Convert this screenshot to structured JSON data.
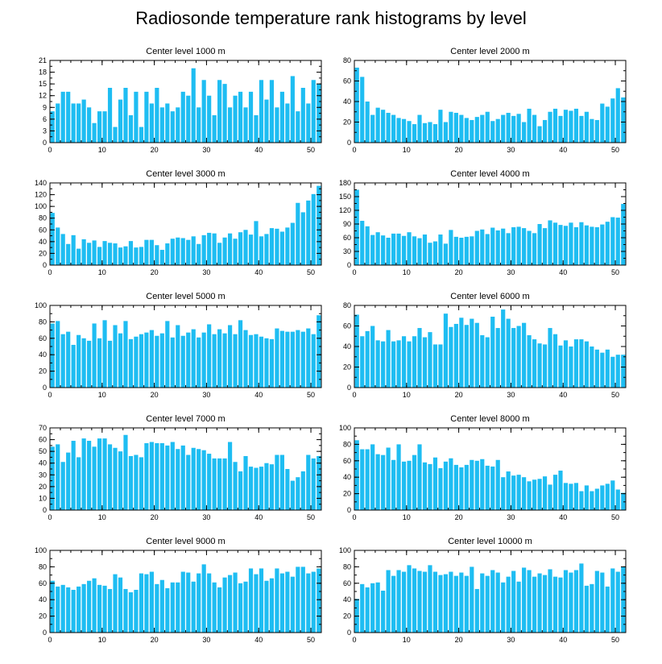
{
  "title": "Radiosonde temperature rank histograms by level",
  "colors": {
    "bar": "#1ebdf2",
    "axis": "#000000"
  },
  "chart_data": [
    {
      "type": "bar",
      "title": "Center level 1000 m",
      "x": [
        0,
        1,
        2,
        3,
        4,
        5,
        6,
        7,
        8,
        9,
        10,
        11,
        12,
        13,
        14,
        15,
        16,
        17,
        18,
        19,
        20,
        21,
        22,
        23,
        24,
        25,
        26,
        27,
        28,
        29,
        30,
        31,
        32,
        33,
        34,
        35,
        36,
        37,
        38,
        39,
        40,
        41,
        42,
        43,
        44,
        45,
        46,
        47,
        48,
        49,
        50,
        51
      ],
      "values": [
        8,
        10,
        13,
        13,
        10,
        10,
        11,
        9,
        5,
        8,
        8,
        14,
        4,
        11,
        14,
        7,
        13,
        4,
        13,
        10,
        14,
        9,
        10,
        8,
        9,
        13,
        12,
        19,
        9,
        16,
        12,
        7,
        16,
        15,
        9,
        12,
        13,
        9,
        13,
        7,
        16,
        11,
        16,
        9,
        13,
        10,
        17,
        8,
        14,
        10,
        16,
        15
      ],
      "xlim": [
        0,
        52
      ],
      "ylim": [
        0,
        21
      ],
      "xticks": [
        0,
        10,
        20,
        30,
        40,
        50
      ],
      "yticks": [
        0,
        3,
        6,
        9,
        12,
        15,
        18,
        21
      ]
    },
    {
      "type": "bar",
      "title": "Center level 2000 m",
      "x": [
        0,
        1,
        2,
        3,
        4,
        5,
        6,
        7,
        8,
        9,
        10,
        11,
        12,
        13,
        14,
        15,
        16,
        17,
        18,
        19,
        20,
        21,
        22,
        23,
        24,
        25,
        26,
        27,
        28,
        29,
        30,
        31,
        32,
        33,
        34,
        35,
        36,
        37,
        38,
        39,
        40,
        41,
        42,
        43,
        44,
        45,
        46,
        47,
        48,
        49,
        50,
        51
      ],
      "values": [
        73,
        64,
        40,
        27,
        34,
        32,
        29,
        27,
        24,
        23,
        21,
        18,
        27,
        19,
        20,
        18,
        32,
        20,
        30,
        29,
        27,
        24,
        22,
        25,
        27,
        30,
        21,
        23,
        27,
        29,
        26,
        28,
        20,
        33,
        27,
        16,
        22,
        30,
        33,
        26,
        32,
        31,
        33,
        26,
        30,
        23,
        22,
        38,
        35,
        43,
        53,
        44
      ],
      "xlim": [
        0,
        52
      ],
      "ylim": [
        0,
        80
      ],
      "xticks": [
        0,
        10,
        20,
        30,
        40,
        50
      ],
      "yticks": [
        0,
        20,
        40,
        60,
        80
      ]
    },
    {
      "type": "bar",
      "title": "Center level 3000 m",
      "x": [
        0,
        1,
        2,
        3,
        4,
        5,
        6,
        7,
        8,
        9,
        10,
        11,
        12,
        13,
        14,
        15,
        16,
        17,
        18,
        19,
        20,
        21,
        22,
        23,
        24,
        25,
        26,
        27,
        28,
        29,
        30,
        31,
        32,
        33,
        34,
        35,
        36,
        37,
        38,
        39,
        40,
        41,
        42,
        43,
        44,
        45,
        46,
        47,
        48,
        49,
        50,
        51
      ],
      "values": [
        89,
        64,
        53,
        36,
        51,
        28,
        44,
        38,
        42,
        31,
        41,
        38,
        37,
        30,
        32,
        41,
        30,
        31,
        43,
        43,
        34,
        26,
        37,
        45,
        47,
        46,
        43,
        49,
        36,
        51,
        55,
        54,
        38,
        47,
        54,
        45,
        56,
        60,
        52,
        75,
        49,
        53,
        63,
        62,
        57,
        64,
        72,
        106,
        90,
        110,
        121,
        135
      ],
      "xlim": [
        0,
        52
      ],
      "ylim": [
        0,
        140
      ],
      "xticks": [
        0,
        10,
        20,
        30,
        40,
        50
      ],
      "yticks": [
        0,
        20,
        40,
        60,
        80,
        100,
        120,
        140
      ]
    },
    {
      "type": "bar",
      "title": "Center level 4000 m",
      "x": [
        0,
        1,
        2,
        3,
        4,
        5,
        6,
        7,
        8,
        9,
        10,
        11,
        12,
        13,
        14,
        15,
        16,
        17,
        18,
        19,
        20,
        21,
        22,
        23,
        24,
        25,
        26,
        27,
        28,
        29,
        30,
        31,
        32,
        33,
        34,
        35,
        36,
        37,
        38,
        39,
        40,
        41,
        42,
        43,
        44,
        45,
        46,
        47,
        48,
        49,
        50,
        51
      ],
      "values": [
        165,
        97,
        85,
        66,
        72,
        65,
        60,
        69,
        69,
        64,
        72,
        63,
        59,
        67,
        49,
        52,
        67,
        47,
        77,
        62,
        60,
        62,
        63,
        75,
        78,
        68,
        82,
        76,
        80,
        70,
        83,
        84,
        81,
        75,
        70,
        90,
        81,
        98,
        93,
        88,
        86,
        93,
        83,
        94,
        87,
        84,
        83,
        89,
        95,
        105,
        104,
        134
      ],
      "xlim": [
        0,
        52
      ],
      "ylim": [
        0,
        180
      ],
      "xticks": [
        0,
        10,
        20,
        30,
        40,
        50
      ],
      "yticks": [
        0,
        30,
        60,
        90,
        120,
        150,
        180
      ]
    },
    {
      "type": "bar",
      "title": "Center level 5000 m",
      "x": [
        0,
        1,
        2,
        3,
        4,
        5,
        6,
        7,
        8,
        9,
        10,
        11,
        12,
        13,
        14,
        15,
        16,
        17,
        18,
        19,
        20,
        21,
        22,
        23,
        24,
        25,
        26,
        27,
        28,
        29,
        30,
        31,
        32,
        33,
        34,
        35,
        36,
        37,
        38,
        39,
        40,
        41,
        42,
        43,
        44,
        45,
        46,
        47,
        48,
        49,
        50,
        51
      ],
      "values": [
        78,
        81,
        65,
        68,
        52,
        64,
        60,
        57,
        78,
        60,
        82,
        57,
        76,
        66,
        81,
        59,
        62,
        65,
        67,
        70,
        63,
        66,
        81,
        61,
        76,
        63,
        67,
        71,
        61,
        67,
        77,
        65,
        71,
        66,
        76,
        65,
        82,
        70,
        64,
        65,
        62,
        60,
        59,
        72,
        69,
        68,
        68,
        70,
        68,
        72,
        65,
        88
      ],
      "xlim": [
        0,
        52
      ],
      "ylim": [
        0,
        100
      ],
      "xticks": [
        0,
        10,
        20,
        30,
        40,
        50
      ],
      "yticks": [
        0,
        20,
        40,
        60,
        80,
        100
      ]
    },
    {
      "type": "bar",
      "title": "Center level 6000 m",
      "x": [
        0,
        1,
        2,
        3,
        4,
        5,
        6,
        7,
        8,
        9,
        10,
        11,
        12,
        13,
        14,
        15,
        16,
        17,
        18,
        19,
        20,
        21,
        22,
        23,
        24,
        25,
        26,
        27,
        28,
        29,
        30,
        31,
        32,
        33,
        34,
        35,
        36,
        37,
        38,
        39,
        40,
        41,
        42,
        43,
        44,
        45,
        46,
        47,
        48,
        49,
        50,
        51
      ],
      "values": [
        71,
        50,
        55,
        60,
        46,
        45,
        56,
        45,
        46,
        50,
        45,
        50,
        58,
        49,
        54,
        42,
        42,
        72,
        59,
        62,
        68,
        61,
        67,
        63,
        51,
        49,
        69,
        58,
        76,
        67,
        58,
        60,
        63,
        51,
        47,
        43,
        42,
        58,
        52,
        41,
        46,
        40,
        47,
        47,
        45,
        40,
        37,
        34,
        37,
        30,
        32,
        32
      ],
      "xlim": [
        0,
        52
      ],
      "ylim": [
        0,
        80
      ],
      "xticks": [
        0,
        10,
        20,
        30,
        40,
        50
      ],
      "yticks": [
        0,
        20,
        40,
        60,
        80
      ]
    },
    {
      "type": "bar",
      "title": "Center level 7000 m",
      "x": [
        0,
        1,
        2,
        3,
        4,
        5,
        6,
        7,
        8,
        9,
        10,
        11,
        12,
        13,
        14,
        15,
        16,
        17,
        18,
        19,
        20,
        21,
        22,
        23,
        24,
        25,
        26,
        27,
        28,
        29,
        30,
        31,
        32,
        33,
        34,
        35,
        36,
        37,
        38,
        39,
        40,
        41,
        42,
        43,
        44,
        45,
        46,
        47,
        48,
        49,
        50,
        51
      ],
      "values": [
        54,
        56,
        41,
        49,
        59,
        45,
        61,
        59,
        54,
        61,
        61,
        56,
        53,
        50,
        64,
        46,
        47,
        45,
        57,
        58,
        57,
        57,
        55,
        58,
        52,
        55,
        47,
        53,
        52,
        51,
        48,
        44,
        44,
        44,
        58,
        41,
        33,
        46,
        37,
        36,
        37,
        40,
        39,
        47,
        47,
        35,
        25,
        28,
        33,
        47,
        44,
        46
      ],
      "xlim": [
        0,
        52
      ],
      "ylim": [
        0,
        70
      ],
      "xticks": [
        0,
        10,
        20,
        30,
        40,
        50
      ],
      "yticks": [
        0,
        10,
        20,
        30,
        40,
        50,
        60,
        70
      ]
    },
    {
      "type": "bar",
      "title": "Center level 8000 m",
      "x": [
        0,
        1,
        2,
        3,
        4,
        5,
        6,
        7,
        8,
        9,
        10,
        11,
        12,
        13,
        14,
        15,
        16,
        17,
        18,
        19,
        20,
        21,
        22,
        23,
        24,
        25,
        26,
        27,
        28,
        29,
        30,
        31,
        32,
        33,
        34,
        35,
        36,
        37,
        38,
        39,
        40,
        41,
        42,
        43,
        44,
        45,
        46,
        47,
        48,
        49,
        50,
        51
      ],
      "values": [
        85,
        74,
        74,
        80,
        68,
        67,
        76,
        61,
        80,
        59,
        60,
        67,
        80,
        58,
        56,
        64,
        51,
        59,
        63,
        55,
        52,
        55,
        61,
        60,
        62,
        54,
        53,
        61,
        40,
        47,
        42,
        43,
        40,
        35,
        37,
        38,
        41,
        31,
        43,
        48,
        33,
        32,
        33,
        23,
        30,
        23,
        26,
        30,
        32,
        36,
        25,
        21
      ],
      "xlim": [
        0,
        52
      ],
      "ylim": [
        0,
        100
      ],
      "xticks": [
        0,
        10,
        20,
        30,
        40,
        50
      ],
      "yticks": [
        0,
        20,
        40,
        60,
        80,
        100
      ]
    },
    {
      "type": "bar",
      "title": "Center level 9000 m",
      "x": [
        0,
        1,
        2,
        3,
        4,
        5,
        6,
        7,
        8,
        9,
        10,
        11,
        12,
        13,
        14,
        15,
        16,
        17,
        18,
        19,
        20,
        21,
        22,
        23,
        24,
        25,
        26,
        27,
        28,
        29,
        30,
        31,
        32,
        33,
        34,
        35,
        36,
        37,
        38,
        39,
        40,
        41,
        42,
        43,
        44,
        45,
        46,
        47,
        48,
        49,
        50,
        51
      ],
      "values": [
        63,
        56,
        58,
        55,
        52,
        56,
        59,
        63,
        66,
        58,
        57,
        53,
        71,
        67,
        53,
        49,
        52,
        72,
        71,
        74,
        59,
        64,
        54,
        61,
        61,
        74,
        73,
        62,
        72,
        83,
        72,
        61,
        55,
        67,
        70,
        73,
        60,
        62,
        78,
        71,
        78,
        63,
        66,
        78,
        72,
        74,
        68,
        80,
        80,
        72,
        74,
        78
      ],
      "xlim": [
        0,
        52
      ],
      "ylim": [
        0,
        100
      ],
      "xticks": [
        0,
        10,
        20,
        30,
        40,
        50
      ],
      "yticks": [
        0,
        20,
        40,
        60,
        80,
        100
      ]
    },
    {
      "type": "bar",
      "title": "Center level 10000 m",
      "x": [
        0,
        1,
        2,
        3,
        4,
        5,
        6,
        7,
        8,
        9,
        10,
        11,
        12,
        13,
        14,
        15,
        16,
        17,
        18,
        19,
        20,
        21,
        22,
        23,
        24,
        25,
        26,
        27,
        28,
        29,
        30,
        31,
        32,
        33,
        34,
        35,
        36,
        37,
        38,
        39,
        40,
        41,
        42,
        43,
        44,
        45,
        46,
        47,
        48,
        49,
        50,
        51
      ],
      "values": [
        41,
        59,
        55,
        60,
        61,
        51,
        76,
        69,
        76,
        74,
        82,
        78,
        75,
        74,
        82,
        74,
        70,
        71,
        74,
        69,
        73,
        69,
        80,
        53,
        72,
        69,
        76,
        73,
        61,
        68,
        75,
        62,
        79,
        76,
        68,
        72,
        70,
        77,
        68,
        67,
        76,
        73,
        76,
        84,
        57,
        59,
        75,
        73,
        56,
        78,
        74,
        80
      ],
      "xlim": [
        0,
        52
      ],
      "ylim": [
        0,
        100
      ],
      "xticks": [
        0,
        10,
        20,
        30,
        40,
        50
      ],
      "yticks": [
        0,
        20,
        40,
        60,
        80,
        100
      ]
    }
  ]
}
